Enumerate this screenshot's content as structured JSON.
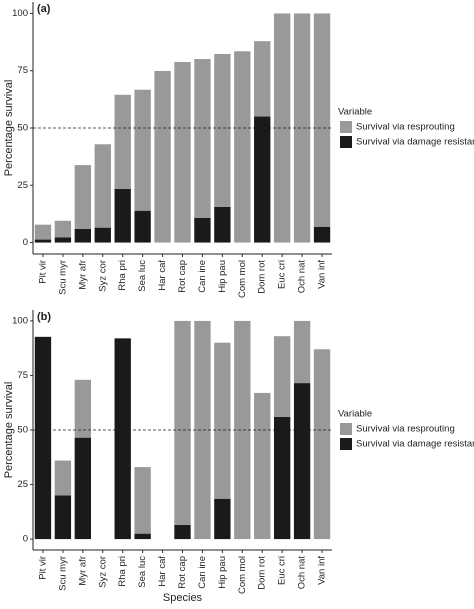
{
  "chart_data": [
    {
      "type": "bar",
      "stacked": true,
      "title": "(a)",
      "ylabel": "Percentage survival",
      "categories": [
        "Pit vir",
        "Scu myr",
        "Myr afr",
        "Syz cor",
        "Rha pri",
        "Sea luc",
        "Har caf",
        "Rot cap",
        "Can ine",
        "Hip pau",
        "Com mol",
        "Dom rot",
        "Euc cri",
        "Och nat",
        "Van inf"
      ],
      "series": [
        {
          "name": "Survival via damage resistance",
          "color": "#1a1a1a",
          "values": [
            1.3,
            2.2,
            6,
            6.5,
            23.4,
            13.9,
            0,
            0,
            10.8,
            15.6,
            0,
            55,
            0,
            0,
            6.9
          ]
        },
        {
          "name": "Survival via resprouting",
          "color": "#999999",
          "values": [
            6.5,
            7.3,
            27.8,
            36.4,
            41.1,
            52.8,
            74.9,
            78.8,
            69.3,
            66.7,
            83.5,
            32.9,
            100,
            100,
            93.1
          ]
        }
      ],
      "ylim": [
        -5,
        105
      ],
      "yticks": [
        0,
        25,
        50,
        75,
        100
      ],
      "hline": 50,
      "legend_title": "Variable"
    },
    {
      "type": "bar",
      "stacked": true,
      "title": "(b)",
      "ylabel": "Percentage survival",
      "xlabel": "Species",
      "categories": [
        "Pit vir",
        "Scu myr",
        "Myr afr",
        "Syz cor",
        "Rha pri",
        "Sea luc",
        "Har caf",
        "Rot cap",
        "Can ine",
        "Hip pau",
        "Com mol",
        "Dom rot",
        "Euc cri",
        "Och nat",
        "Van inf"
      ],
      "series": [
        {
          "name": "Survival via damage resistance",
          "color": "#1a1a1a",
          "values": [
            92.7,
            20,
            46.5,
            0,
            92,
            2.5,
            0,
            6.5,
            0,
            18.5,
            0,
            0,
            56,
            71.5,
            0
          ]
        },
        {
          "name": "Survival via resprouting",
          "color": "#999999",
          "values": [
            0,
            16,
            26.5,
            0,
            0,
            30.5,
            0,
            93.5,
            100,
            71.5,
            100,
            67,
            37,
            28.5,
            87
          ]
        }
      ],
      "ylim": [
        -5,
        105
      ],
      "yticks": [
        0,
        25,
        50,
        75,
        100
      ],
      "hline": 50,
      "legend_title": "Variable"
    }
  ]
}
